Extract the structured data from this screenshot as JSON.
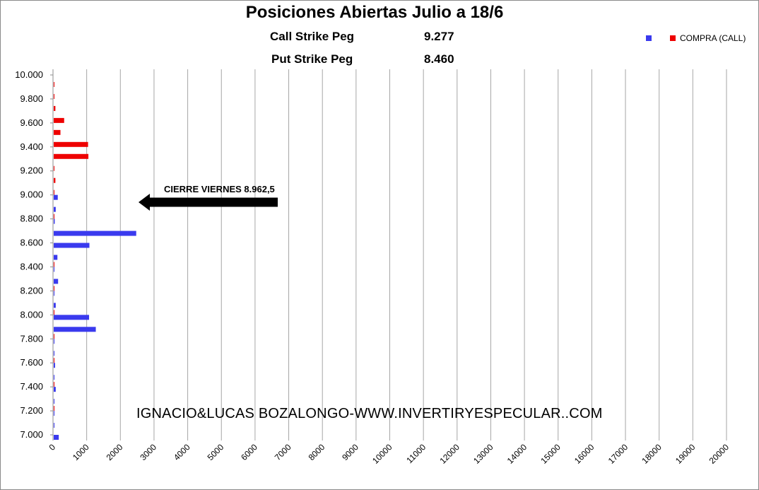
{
  "title": "Posiciones Abiertas Julio a 18/6",
  "pegs": {
    "call_label": "Call Strike Peg",
    "call_value": "9.277",
    "put_label": "Put Strike Peg",
    "put_value": "8.460"
  },
  "annotation": "CIERRE VIERNES 8.962,5",
  "watermark": "IGNACIO&LUCAS BOZALONGO-WWW.INVERTIRYESPECULAR..COM",
  "legend": {
    "blue_label": "",
    "red_label": "COMPRA (CALL)"
  },
  "colors": {
    "call": "#ee0000",
    "put": "#3a3aee",
    "grid": "#a6a6a6",
    "arrow": "#000000"
  },
  "chart_data": {
    "type": "bar",
    "orientation": "horizontal",
    "title": "Posiciones Abiertas Julio a 18/6",
    "xlim": [
      0,
      20000
    ],
    "x_ticks": [
      0,
      1000,
      2000,
      3000,
      4000,
      5000,
      6000,
      7000,
      8000,
      9000,
      10000,
      11000,
      12000,
      13000,
      14000,
      15000,
      16000,
      17000,
      18000,
      19000,
      20000
    ],
    "y_ticks": [
      "10.000",
      "9.800",
      "9.600",
      "9.400",
      "9.200",
      "9.000",
      "8.800",
      "8.600",
      "8.400",
      "8.200",
      "8.000",
      "7.800",
      "7.600",
      "7.400",
      "7.200",
      "7.000"
    ],
    "strikes": [
      10000,
      9900,
      9800,
      9700,
      9600,
      9500,
      9400,
      9300,
      9200,
      9100,
      9000,
      8900,
      8800,
      8700,
      8600,
      8500,
      8400,
      8300,
      8200,
      8100,
      8000,
      7900,
      7800,
      7700,
      7600,
      7500,
      7400,
      7300,
      7200,
      7100,
      7000
    ],
    "series": [
      {
        "name": "COMPRA (CALL)",
        "color": "#ee0000",
        "values": [
          0,
          20,
          20,
          50,
          310,
          200,
          1020,
          1030,
          20,
          50,
          20,
          0,
          20,
          0,
          0,
          0,
          10,
          0,
          10,
          0,
          10,
          0,
          10,
          0,
          10,
          0,
          10,
          0,
          10,
          0,
          0
        ]
      },
      {
        "name": "",
        "color": "#3a3aee",
        "values": [
          0,
          0,
          0,
          0,
          0,
          0,
          0,
          0,
          0,
          0,
          120,
          60,
          30,
          2450,
          1060,
          110,
          20,
          130,
          20,
          60,
          1050,
          1250,
          20,
          20,
          40,
          20,
          60,
          20,
          20,
          20,
          150
        ]
      }
    ],
    "grid": true,
    "legend_position": "top-right"
  }
}
